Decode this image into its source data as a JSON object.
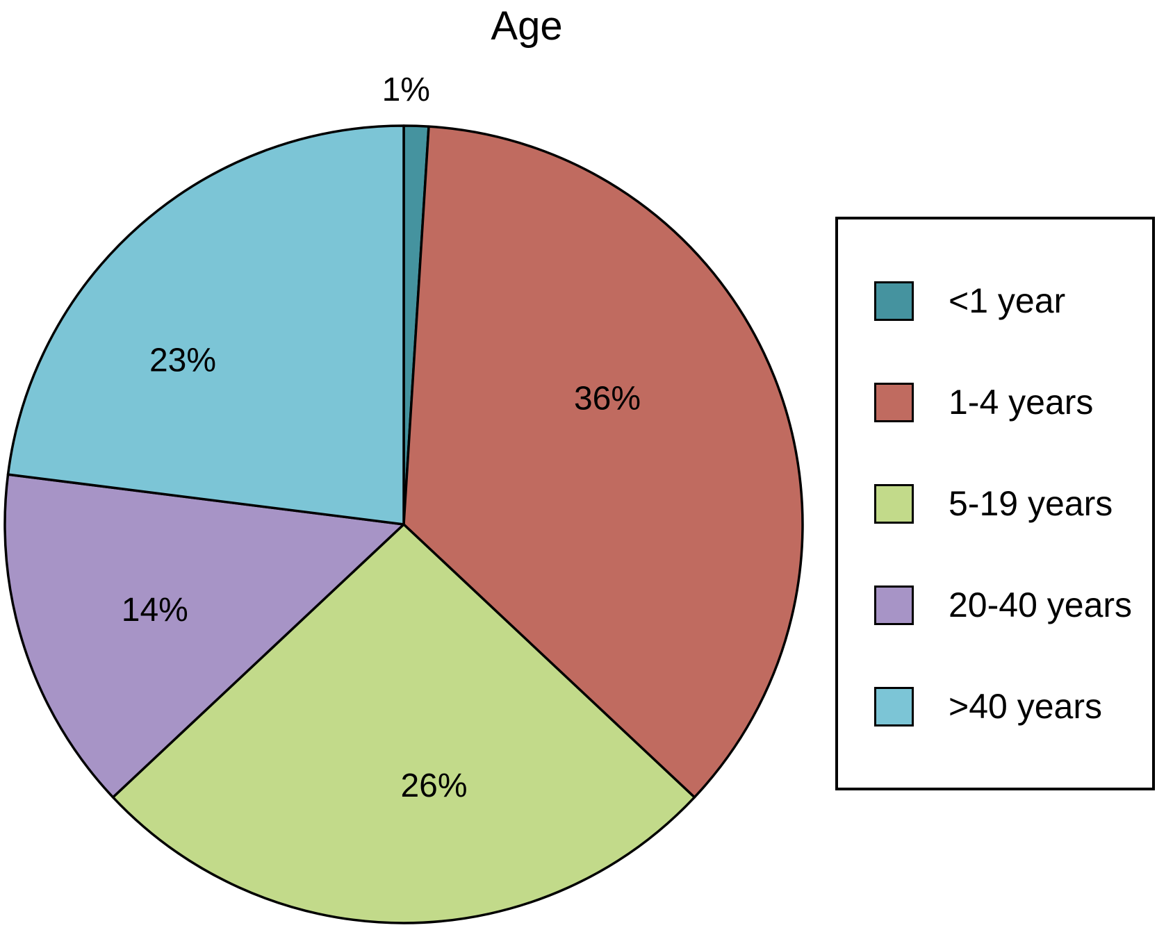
{
  "chart_data": {
    "type": "pie",
    "title": "Age",
    "slices": [
      {
        "label": "<1 year",
        "value": 1,
        "pct_label": "1%",
        "color": "#45939f",
        "label_angle_deg": 89.7,
        "label_distance": 1.09
      },
      {
        "label": "1-4 years",
        "value": 36,
        "pct_label": "36%",
        "color": "#c06b60",
        "label_angle_deg": 31.7,
        "label_distance": 0.6
      },
      {
        "label": "5-19 years",
        "value": 26,
        "pct_label": "26%",
        "color": "#c2da8a",
        "label_angle_deg": -83.4,
        "label_distance": 0.66
      },
      {
        "label": "20-40 years",
        "value": 14,
        "pct_label": "14%",
        "color": "#a794c6",
        "label_angle_deg": -161.0,
        "label_distance": 0.66
      },
      {
        "label": ">40 years",
        "value": 23,
        "pct_label": "23%",
        "color": "#7cc5d6",
        "label_angle_deg": 143.4,
        "label_distance": 0.69
      }
    ],
    "start_angle_deg": 90,
    "direction": "clockwise",
    "legend_position": "right",
    "outline_color": "#000000",
    "background": "#ffffff"
  }
}
